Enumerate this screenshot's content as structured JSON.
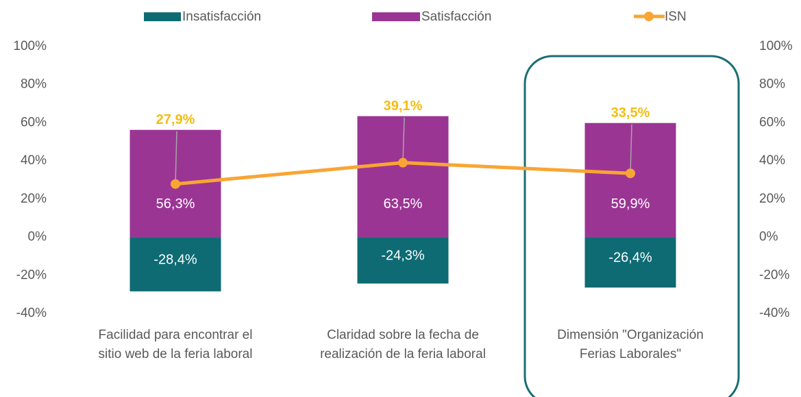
{
  "chart_data": {
    "type": "bar",
    "stacked": true,
    "categories": [
      [
        "Facilidad para encontrar el",
        "sitio web de la feria laboral"
      ],
      [
        "Claridad sobre la fecha de",
        "realización de la feria laboral"
      ],
      [
        "Dimensión \"Organización",
        "Ferias Laborales\""
      ]
    ],
    "series": [
      {
        "name": "Insatisfacción",
        "color": "#0e6b73",
        "values": [
          -28.4,
          -24.3,
          -26.4
        ],
        "value_labels": [
          "-28,4%",
          "-24,3%",
          "-26,4%"
        ]
      },
      {
        "name": "Satisfacción",
        "color": "#9b3594",
        "values": [
          56.3,
          63.5,
          59.9
        ],
        "value_labels": [
          "56,3%",
          "63,5%",
          "59,9%"
        ]
      },
      {
        "name": "ISN",
        "type": "line",
        "color": "#f9a533",
        "label_color": "#f5bd0f",
        "values": [
          27.9,
          39.1,
          33.5
        ],
        "value_labels": [
          "27,9%",
          "39,1%",
          "33,5%"
        ]
      }
    ],
    "ylim": [
      -40,
      100
    ],
    "yticks": [
      {
        "value": -40,
        "label": "-40%"
      },
      {
        "value": -20,
        "label": "-20%"
      },
      {
        "value": 0,
        "label": "0%"
      },
      {
        "value": 20,
        "label": "20%"
      },
      {
        "value": 40,
        "label": "40%"
      },
      {
        "value": 60,
        "label": "60%"
      },
      {
        "value": 80,
        "label": "80%"
      },
      {
        "value": 100,
        "label": "100%"
      }
    ],
    "y2lim": [
      -40,
      100
    ],
    "y2ticks": [
      {
        "value": -40,
        "label": "-40%"
      },
      {
        "value": -20,
        "label": "-20%"
      },
      {
        "value": 0,
        "label": "0%"
      },
      {
        "value": 20,
        "label": "20%"
      },
      {
        "value": 40,
        "label": "40%"
      },
      {
        "value": 60,
        "label": "60%"
      },
      {
        "value": 80,
        "label": "80%"
      },
      {
        "value": 100,
        "label": "100%"
      }
    ],
    "grid": false,
    "legend": "top"
  }
}
